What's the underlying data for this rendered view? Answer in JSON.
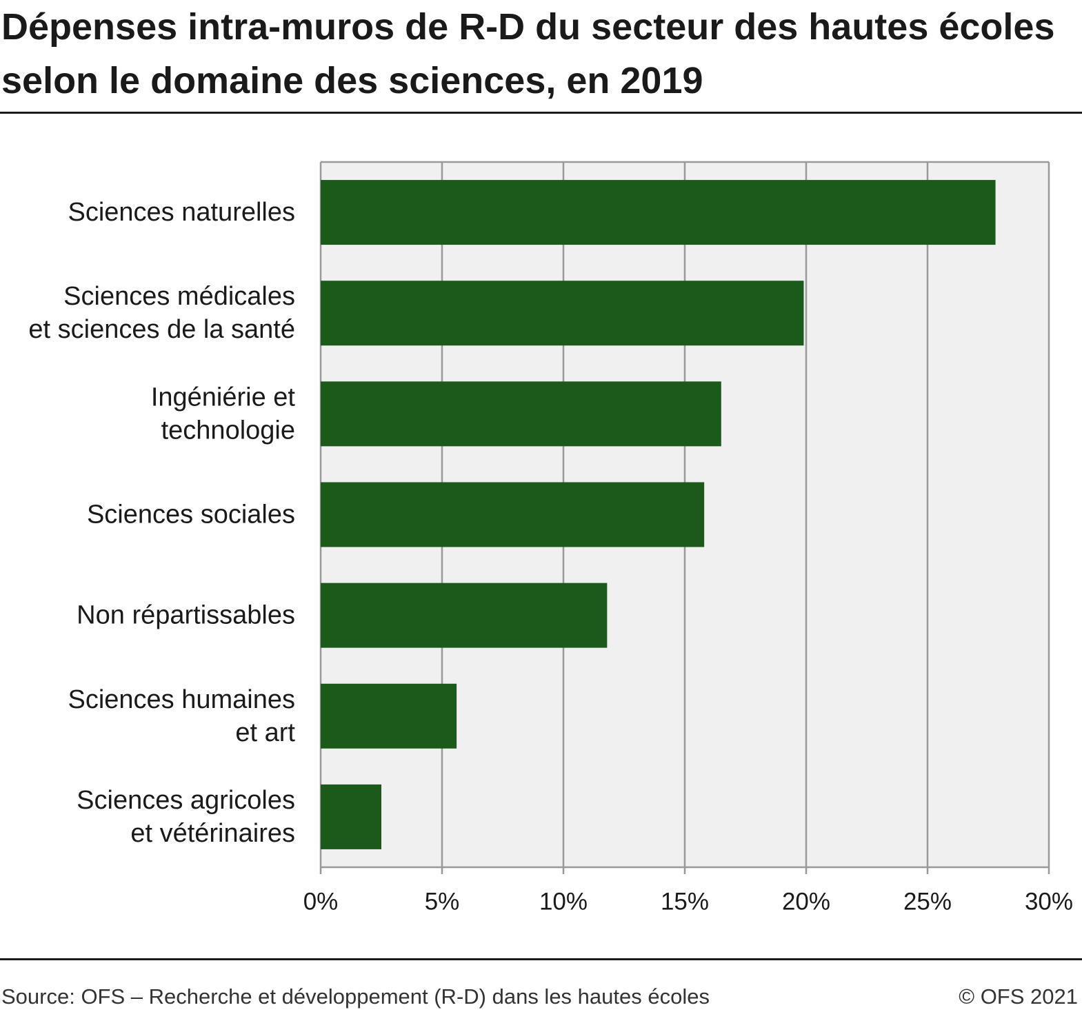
{
  "title": "Dépenses intra-muros de R-D du secteur des hautes écoles selon le domaine des sciences, en 2019",
  "footer": {
    "source": "Source: OFS – Recherche et développement (R-D) dans les hautes écoles",
    "copyright": "© OFS 2021"
  },
  "colors": {
    "bar": "#1b5a1b",
    "plot_background": "#f0f0f0",
    "grid": "#999999"
  },
  "chart_data": {
    "type": "bar",
    "orientation": "horizontal",
    "categories": [
      [
        "Sciences naturelles"
      ],
      [
        "Sciences médicales",
        "et sciences de la santé"
      ],
      [
        "Ingéniérie et",
        "technologie"
      ],
      [
        "Sciences sociales"
      ],
      [
        "Non répartissables"
      ],
      [
        "Sciences humaines",
        "et art"
      ],
      [
        "Sciences agricoles",
        "et vétérinaires"
      ]
    ],
    "values": [
      27.8,
      19.9,
      16.5,
      15.8,
      11.8,
      5.6,
      2.5
    ],
    "unit": "%",
    "xlim": [
      0,
      30
    ],
    "xticks": [
      0,
      5,
      10,
      15,
      20,
      25,
      30
    ],
    "xtick_labels": [
      "0%",
      "5%",
      "10%",
      "15%",
      "20%",
      "25%",
      "30%"
    ],
    "grid": true,
    "legend": "none",
    "xlabel": "",
    "ylabel": ""
  }
}
